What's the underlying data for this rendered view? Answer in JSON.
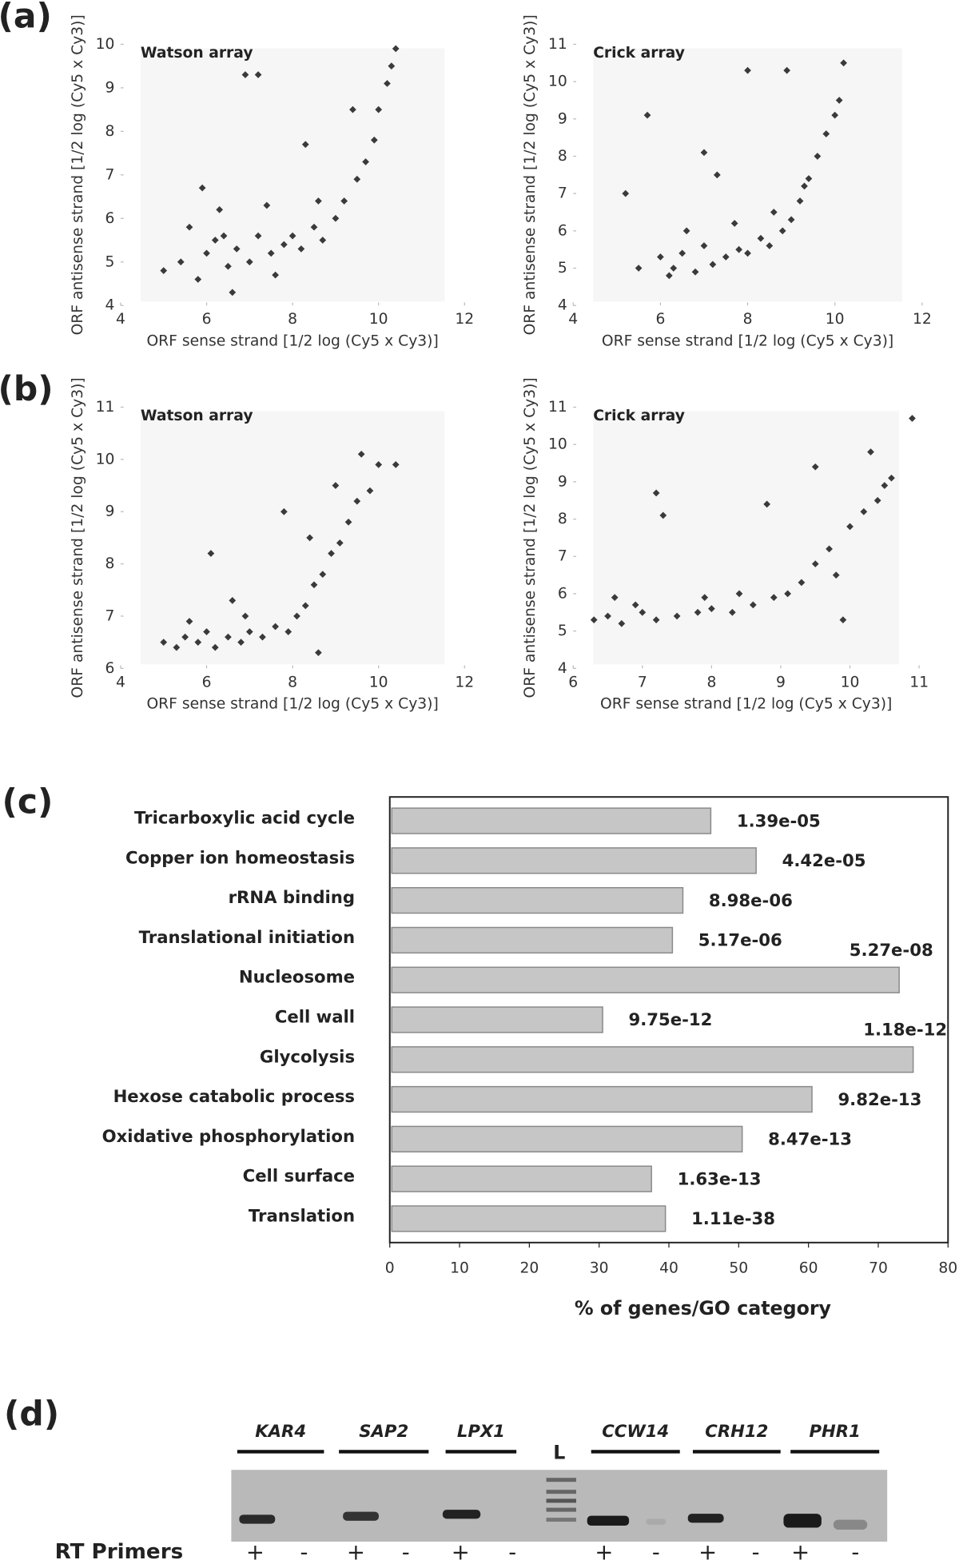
{
  "panel_labels": [
    "(a)",
    "(b)",
    "(c)",
    "(d)"
  ],
  "chart_data": [
    {
      "type": "scatter",
      "title": "Watson array",
      "x_label": "ORF sense strand [1/2 log (Cy5 x Cy3)]",
      "y_label": "ORF antisense strand [1/2 log (Cy5 x Cy3)]",
      "color": "#3a3a3a",
      "xlim": [
        4,
        12
      ],
      "ylim": [
        4,
        10
      ],
      "xticks": [
        4,
        6,
        8,
        10,
        12
      ],
      "yticks": [
        4,
        5,
        6,
        7,
        8,
        9,
        10
      ],
      "x": [
        5.0,
        5.4,
        5.8,
        6.0,
        6.2,
        6.5,
        6.7,
        7.0,
        7.2,
        7.5,
        7.8,
        8.0,
        8.2,
        8.5,
        8.7,
        9.0,
        9.2,
        9.5,
        9.7,
        9.9,
        10.0,
        10.2,
        10.3,
        10.4,
        6.9,
        7.2,
        5.9,
        6.3,
        7.4,
        8.3,
        9.4,
        6.6,
        7.6,
        8.6,
        5.6,
        6.4
      ],
      "y": [
        4.8,
        5.0,
        4.6,
        5.2,
        5.5,
        4.9,
        5.3,
        5.0,
        5.6,
        5.2,
        5.4,
        5.6,
        5.3,
        5.8,
        5.5,
        6.0,
        6.4,
        6.9,
        7.3,
        7.8,
        8.5,
        9.1,
        9.5,
        9.9,
        9.3,
        9.3,
        6.7,
        6.2,
        6.3,
        7.7,
        8.5,
        4.3,
        4.7,
        6.4,
        5.8,
        5.6
      ]
    },
    {
      "type": "scatter",
      "title": "Crick array",
      "x_label": "ORF sense strand [1/2 log (Cy5 x Cy3)]",
      "y_label": "ORF antisense strand [1/2 log (Cy5 x Cy3)]",
      "color": "#3a3a3a",
      "xlim": [
        4,
        12
      ],
      "ylim": [
        4,
        11
      ],
      "xticks": [
        4,
        6,
        8,
        10,
        12
      ],
      "yticks": [
        4,
        5,
        6,
        7,
        8,
        9,
        10,
        11
      ],
      "x": [
        5.2,
        5.7,
        6.0,
        6.3,
        6.5,
        6.8,
        7.0,
        7.2,
        7.5,
        7.8,
        8.0,
        8.3,
        8.5,
        8.8,
        9.0,
        9.2,
        9.4,
        9.6,
        9.8,
        10.0,
        10.1,
        10.2,
        8.0,
        8.9,
        7.3,
        7.0,
        6.2,
        6.6,
        7.7,
        8.6,
        9.3,
        5.5
      ],
      "y": [
        7.0,
        9.1,
        5.3,
        5.0,
        5.4,
        4.9,
        5.6,
        5.1,
        5.3,
        5.5,
        5.4,
        5.8,
        5.6,
        6.0,
        6.3,
        6.8,
        7.4,
        8.0,
        8.6,
        9.1,
        9.5,
        10.5,
        10.3,
        10.3,
        7.5,
        8.1,
        4.8,
        6.0,
        6.2,
        6.5,
        7.2,
        5.0
      ]
    },
    {
      "type": "scatter",
      "title": "Watson array",
      "x_label": "ORF sense strand [1/2 log (Cy5 x Cy3)]",
      "y_label": "ORF antisense strand [1/2 log (Cy5 x Cy3)]",
      "color": "#3a3a3a",
      "xlim": [
        4,
        12
      ],
      "ylim": [
        6,
        11
      ],
      "xticks": [
        4,
        6,
        8,
        10,
        12
      ],
      "yticks": [
        6,
        7,
        8,
        9,
        10,
        11
      ],
      "x": [
        5.0,
        5.3,
        5.5,
        5.8,
        6.0,
        6.2,
        6.5,
        6.8,
        7.0,
        7.3,
        7.6,
        7.9,
        8.1,
        8.3,
        8.5,
        8.7,
        8.9,
        9.1,
        9.3,
        9.5,
        9.6,
        9.8,
        10.0,
        10.4,
        6.1,
        6.6,
        7.8,
        8.4,
        9.0,
        5.6,
        6.9,
        8.6
      ],
      "y": [
        6.5,
        6.4,
        6.6,
        6.5,
        6.7,
        6.4,
        6.6,
        6.5,
        6.7,
        6.6,
        6.8,
        6.7,
        7.0,
        7.2,
        7.6,
        7.8,
        8.2,
        8.4,
        8.8,
        9.2,
        10.1,
        9.4,
        9.9,
        9.9,
        8.2,
        7.3,
        9.0,
        8.5,
        9.5,
        6.9,
        7.0,
        6.3
      ]
    },
    {
      "type": "scatter",
      "title": "Crick array",
      "x_label": "ORF sense strand [1/2 log (Cy5 x Cy3)]",
      "y_label": "ORF antisense strand [1/2 log (Cy5 x Cy3)]",
      "color": "#3a3a3a",
      "xlim": [
        6,
        11
      ],
      "ylim": [
        4,
        11
      ],
      "xticks": [
        6,
        7,
        8,
        9,
        10,
        11
      ],
      "yticks": [
        4,
        5,
        6,
        7,
        8,
        9,
        10,
        11
      ],
      "x": [
        6.3,
        6.5,
        6.7,
        7.0,
        7.2,
        7.5,
        7.8,
        8.0,
        8.3,
        8.6,
        8.9,
        9.1,
        9.3,
        9.5,
        9.7,
        9.8,
        10.0,
        10.2,
        10.4,
        10.5,
        10.6,
        10.9,
        7.2,
        7.3,
        9.5,
        8.8,
        6.6,
        10.3,
        7.9,
        9.9,
        8.4,
        6.9
      ],
      "y": [
        5.3,
        5.4,
        5.2,
        5.5,
        5.3,
        5.4,
        5.5,
        5.6,
        5.5,
        5.7,
        5.9,
        6.0,
        6.3,
        6.8,
        7.2,
        6.5,
        7.8,
        8.2,
        8.5,
        8.9,
        9.1,
        10.7,
        8.7,
        8.1,
        9.4,
        8.4,
        5.9,
        9.8,
        5.9,
        5.3,
        6.0,
        5.7
      ]
    },
    {
      "type": "bar",
      "orientation": "horizontal",
      "x_label": "% of genes/GO category",
      "color": "#c6c6c6",
      "categories": [
        "Tricarboxylic acid cycle",
        "Copper ion homeostasis",
        "rRNA binding",
        "Translational initiation",
        "Nucleosome",
        "Cell wall",
        "Glycolysis",
        "Hexose catabolic process",
        "Oxidative phosphorylation",
        "Cell surface",
        "Translation"
      ],
      "values": [
        46,
        52.5,
        42,
        40.5,
        73,
        30.5,
        75,
        60.5,
        50.5,
        37.5,
        39.5
      ],
      "p_values": [
        "1.39e-05",
        "4.42e-05",
        "8.98e-06",
        "5.17e-06",
        "5.27e-08",
        "9.75e-12",
        "1.18e-12",
        "9.82e-13",
        "8.47e-13",
        "1.63e-13",
        "1.11e-38"
      ],
      "xlim": [
        0,
        80
      ],
      "xticks": [
        0,
        10,
        20,
        30,
        40,
        50,
        60,
        70,
        80
      ]
    }
  ],
  "gel": {
    "genes": [
      "KAR4",
      "SAP2",
      "LPX1",
      "CCW14",
      "CRH12",
      "PHR1"
    ],
    "ladder": "L",
    "row_label": "RT Primers",
    "signs": [
      "+",
      "-",
      "+",
      "-",
      "+",
      "-",
      "+",
      "-",
      "+",
      "-",
      "+",
      "-"
    ]
  }
}
